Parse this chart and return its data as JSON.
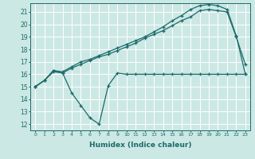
{
  "xlabel": "Humidex (Indice chaleur)",
  "bg_color": "#cce8e4",
  "line_color": "#1a6b6b",
  "grid_color": "#ffffff",
  "xlim": [
    -0.5,
    23.5
  ],
  "ylim": [
    11.5,
    21.7
  ],
  "yticks": [
    12,
    13,
    14,
    15,
    16,
    17,
    18,
    19,
    20,
    21
  ],
  "xticks": [
    0,
    1,
    2,
    3,
    4,
    5,
    6,
    7,
    8,
    9,
    10,
    11,
    12,
    13,
    14,
    15,
    16,
    17,
    18,
    19,
    20,
    21,
    22,
    23
  ],
  "line1_y": [
    15,
    15.5,
    16.3,
    16.1,
    14.5,
    13.5,
    12.5,
    12.0,
    15.1,
    16.1,
    16.0,
    16.0,
    16.0,
    16.0,
    16.0,
    16.0,
    16.0,
    16.0,
    16.0,
    16.0,
    16.0,
    16.0,
    16.0,
    16.0
  ],
  "line2_y": [
    15,
    15.5,
    16.2,
    16.1,
    16.5,
    16.8,
    17.1,
    17.4,
    17.6,
    17.9,
    18.2,
    18.5,
    18.9,
    19.2,
    19.5,
    19.9,
    20.3,
    20.6,
    21.1,
    21.2,
    21.1,
    21.0,
    19.0,
    16.8
  ],
  "line3_y": [
    15,
    15.5,
    16.3,
    16.2,
    16.6,
    17.0,
    17.2,
    17.5,
    17.8,
    18.1,
    18.4,
    18.7,
    19.0,
    19.4,
    19.8,
    20.3,
    20.7,
    21.2,
    21.5,
    21.6,
    21.5,
    21.2,
    19.1,
    16.0
  ]
}
